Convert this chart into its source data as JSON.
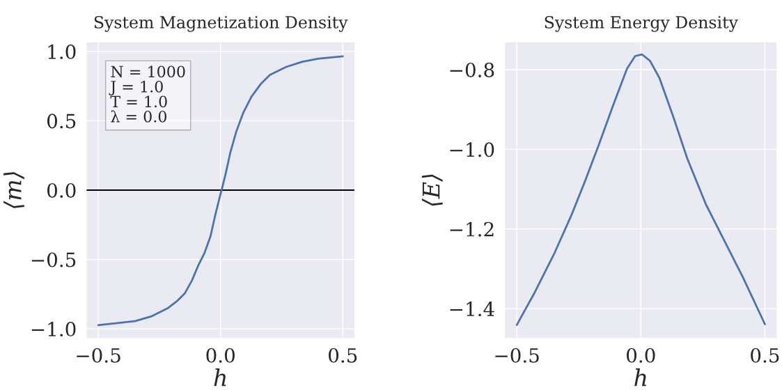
{
  "chart_data": [
    {
      "type": "line",
      "title": "System Magnetization Density",
      "xlabel": "h",
      "ylabel": "⟨m⟩",
      "x": [
        -0.5,
        -0.35,
        -0.284,
        -0.217,
        -0.179,
        -0.146,
        -0.117,
        -0.093,
        -0.065,
        -0.041,
        -0.022,
        -0.003,
        0.007,
        0.021,
        0.04,
        0.064,
        0.092,
        0.126,
        0.164,
        0.202,
        0.269,
        0.335,
        0.402,
        0.5
      ],
      "series": [
        {
          "color": "#4c72b0",
          "values": [
            -0.973,
            -0.945,
            -0.911,
            -0.853,
            -0.802,
            -0.744,
            -0.652,
            -0.551,
            -0.451,
            -0.333,
            -0.183,
            -0.049,
            0.018,
            0.119,
            0.27,
            0.42,
            0.554,
            0.672,
            0.764,
            0.831,
            0.889,
            0.926,
            0.948,
            0.965
          ]
        }
      ],
      "xlim": [
        -0.55,
        0.55
      ],
      "xticks": [
        {
          "value": -0.5,
          "label": "−0.5"
        },
        {
          "value": 0,
          "label": "0.0"
        },
        {
          "value": 0.5,
          "label": "0.5"
        }
      ],
      "ylim": [
        -1.07,
        1.07
      ],
      "yticks": [
        {
          "value": -1.0,
          "label": "−1.0"
        },
        {
          "value": -0.5,
          "label": "−0.5"
        },
        {
          "value": 0,
          "label": "0.0"
        },
        {
          "value": 0.5,
          "label": "0.5"
        },
        {
          "value": 1,
          "label": "1.0"
        }
      ],
      "ref_lines": [
        {
          "axis": "y",
          "value": 0,
          "color": "#000000"
        }
      ],
      "annotations": [
        "N = 1000",
        "J = 1.0",
        "T = 1.0",
        "λ = 0.0"
      ],
      "grid": true,
      "legend": false
    },
    {
      "type": "line",
      "title": "System Energy Density",
      "xlabel": "h",
      "ylabel": "⟨E⟩",
      "x": [
        -0.5,
        -0.431,
        -0.347,
        -0.281,
        -0.225,
        -0.169,
        -0.112,
        -0.056,
        -0.023,
        0.005,
        0.037,
        0.075,
        0.131,
        0.187,
        0.262,
        0.328,
        0.412,
        0.5
      ],
      "series": [
        {
          "color": "#4c72b0",
          "values": [
            -1.441,
            -1.363,
            -1.259,
            -1.167,
            -1.08,
            -0.988,
            -0.89,
            -0.798,
            -0.766,
            -0.762,
            -0.778,
            -0.821,
            -0.919,
            -1.023,
            -1.138,
            -1.219,
            -1.322,
            -1.439
          ]
        }
      ],
      "xlim": [
        -0.55,
        0.55
      ],
      "xticks": [
        {
          "value": -0.5,
          "label": "−0.5"
        },
        {
          "value": 0,
          "label": "0.0"
        },
        {
          "value": 0.5,
          "label": "0.5"
        }
      ],
      "ylim": [
        -1.475,
        -0.73
      ],
      "yticks": [
        {
          "value": -1.4,
          "label": "−1.4"
        },
        {
          "value": -1.2,
          "label": "−1.2"
        },
        {
          "value": -1.0,
          "label": "−1.0"
        },
        {
          "value": -0.8,
          "label": "−0.8"
        }
      ],
      "grid": true,
      "legend": false
    }
  ]
}
